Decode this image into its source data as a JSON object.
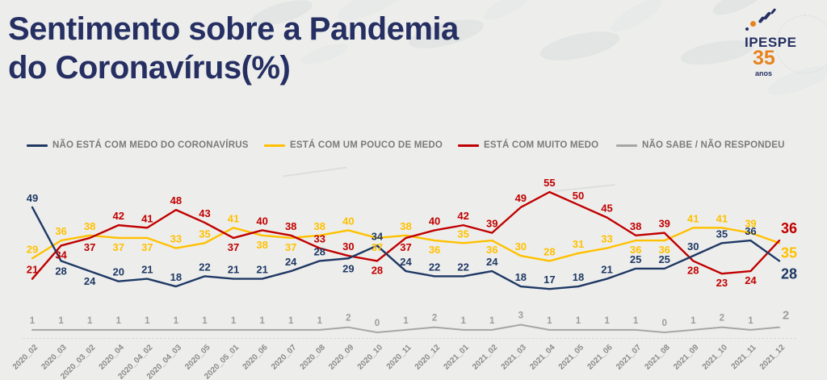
{
  "title": {
    "line1": "Sentimento sobre a Pandemia",
    "line2": "do Coronavírus(%)"
  },
  "logo": {
    "brand": "IPESPE",
    "years": "35",
    "anos": "anos"
  },
  "colors": {
    "background": "#EDEEEC",
    "title": "#252F62",
    "navy": "#1F3864",
    "yellow": "#FFC000",
    "red": "#C00000",
    "gray_line": "#A6A6A6",
    "gray_label": "#9C9C9C",
    "legend_text": "#7A7A7A",
    "axis_label": "#8A8A8A",
    "logo_orange": "#E8821E"
  },
  "chart_data": {
    "type": "line",
    "categories": [
      "2020_02",
      "2020_03",
      "2020_03_02",
      "2020_04",
      "2020_04_02",
      "2020_04_03",
      "2020_05",
      "2020_05_01",
      "2020_06",
      "2020_07",
      "2020_08",
      "2020_09",
      "2020_10",
      "2020_11",
      "2020_12",
      "2021_01",
      "2021_02",
      "2021_03",
      "2021_04",
      "2021_05",
      "2021_06",
      "2021_07",
      "2021_08",
      "2021_09",
      "2021_10",
      "2021_11",
      "2021_12"
    ],
    "series": [
      {
        "name": "NÃO ESTÁ COM MEDO DO CORONAVÍRUS",
        "key": "navy",
        "color": "#1F3864",
        "values": [
          49,
          28,
          24,
          20,
          21,
          18,
          22,
          21,
          21,
          24,
          28,
          29,
          34,
          24,
          22,
          22,
          24,
          18,
          17,
          18,
          21,
          25,
          25,
          30,
          35,
          36,
          28
        ]
      },
      {
        "name": "ESTÁ COM UM POUCO DE MEDO",
        "key": "yellow",
        "color": "#FFC000",
        "values": [
          29,
          36,
          38,
          37,
          37,
          33,
          35,
          41,
          38,
          37,
          38,
          40,
          37,
          38,
          36,
          35,
          36,
          30,
          28,
          31,
          33,
          36,
          36,
          41,
          41,
          39,
          35
        ]
      },
      {
        "name": "ESTÁ COM MUITO MEDO",
        "key": "red",
        "color": "#C00000",
        "values": [
          21,
          34,
          37,
          42,
          41,
          48,
          43,
          37,
          40,
          38,
          33,
          30,
          28,
          37,
          40,
          42,
          39,
          49,
          55,
          50,
          45,
          38,
          39,
          28,
          23,
          24,
          36
        ]
      },
      {
        "name": "NÃO SABE / NÃO RESPONDEU",
        "key": "gray",
        "color": "#A6A6A6",
        "values": [
          1,
          1,
          1,
          1,
          1,
          1,
          1,
          1,
          1,
          1,
          1,
          2,
          0,
          1,
          2,
          1,
          1,
          3,
          1,
          1,
          1,
          1,
          0,
          1,
          2,
          1,
          2
        ]
      }
    ],
    "ylim": [
      0,
      60
    ],
    "grid": false,
    "legend_position": "top",
    "title": "Sentimento sobre a Pandemia do Coronavírus(%)"
  }
}
